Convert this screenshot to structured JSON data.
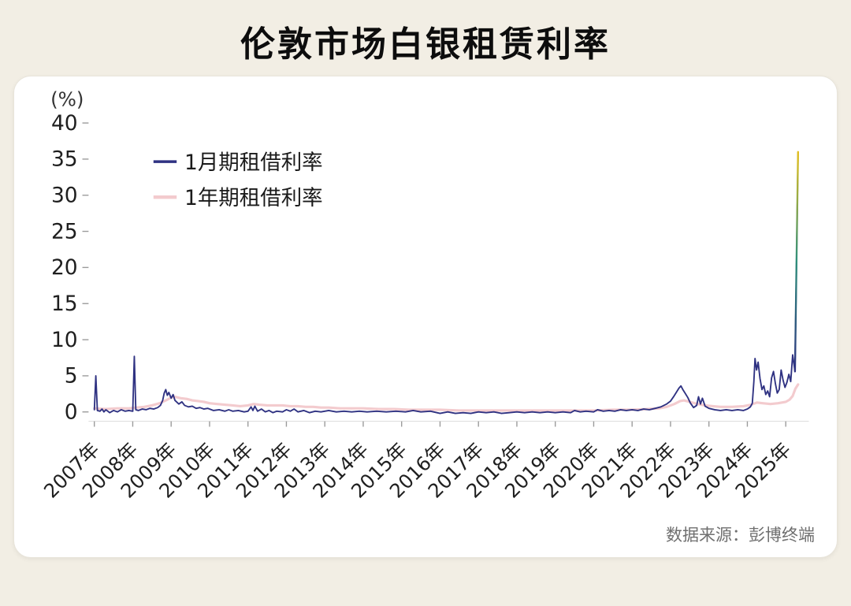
{
  "page": {
    "title": "伦敦市场白银租赁利率",
    "source": "数据来源：彭博终端"
  },
  "chart_data": {
    "type": "line",
    "title": "伦敦市场白银租赁利率",
    "unit_label": "(%)",
    "ylim": [
      0,
      40
    ],
    "y_ticks": [
      0,
      5,
      10,
      15,
      20,
      25,
      30,
      35,
      40
    ],
    "x_tick_years": [
      2007,
      2008,
      2009,
      2010,
      2011,
      2012,
      2013,
      2014,
      2015,
      2016,
      2017,
      2018,
      2019,
      2020,
      2021,
      2022,
      2023,
      2024,
      2025
    ],
    "x_tick_labels": [
      "2007年",
      "2008年",
      "2009年",
      "2010年",
      "2011年",
      "2012年",
      "2013年",
      "2014年",
      "2015年",
      "2016年",
      "2017年",
      "2018年",
      "2019年",
      "2020年",
      "2021年",
      "2022年",
      "2023年",
      "2024年",
      "2025年"
    ],
    "grid": false,
    "legend_position": "top-left",
    "legend": [
      {
        "label": "1月期租借利率",
        "color": "#2F3282"
      },
      {
        "label": "1年期租借利率",
        "color": "#F3CBCE"
      }
    ],
    "spike_gradient": [
      "#2F3282",
      "#2E8F7B",
      "#E5C01D"
    ],
    "source": "数据来源：彭博终端",
    "series": [
      {
        "name": "1月期租借利率",
        "color": "#2F3282",
        "points": [
          [
            2007.0,
            0.3
          ],
          [
            2007.04,
            5.0
          ],
          [
            2007.08,
            0.2
          ],
          [
            2007.15,
            0.1
          ],
          [
            2007.2,
            0.4
          ],
          [
            2007.25,
            0.0
          ],
          [
            2007.3,
            0.3
          ],
          [
            2007.4,
            -0.1
          ],
          [
            2007.5,
            0.2
          ],
          [
            2007.6,
            0.0
          ],
          [
            2007.7,
            0.3
          ],
          [
            2007.8,
            0.1
          ],
          [
            2007.9,
            0.2
          ],
          [
            2008.0,
            0.1
          ],
          [
            2008.04,
            7.7
          ],
          [
            2008.08,
            0.3
          ],
          [
            2008.15,
            0.2
          ],
          [
            2008.25,
            0.4
          ],
          [
            2008.35,
            0.3
          ],
          [
            2008.45,
            0.5
          ],
          [
            2008.55,
            0.4
          ],
          [
            2008.65,
            0.6
          ],
          [
            2008.72,
            0.9
          ],
          [
            2008.78,
            1.6
          ],
          [
            2008.82,
            2.6
          ],
          [
            2008.86,
            3.1
          ],
          [
            2008.9,
            2.3
          ],
          [
            2008.94,
            2.7
          ],
          [
            2009.0,
            1.9
          ],
          [
            2009.05,
            2.4
          ],
          [
            2009.1,
            1.6
          ],
          [
            2009.2,
            1.1
          ],
          [
            2009.28,
            1.4
          ],
          [
            2009.35,
            0.9
          ],
          [
            2009.45,
            0.7
          ],
          [
            2009.55,
            0.8
          ],
          [
            2009.65,
            0.5
          ],
          [
            2009.75,
            0.6
          ],
          [
            2009.85,
            0.4
          ],
          [
            2009.95,
            0.5
          ],
          [
            2010.1,
            0.2
          ],
          [
            2010.25,
            0.3
          ],
          [
            2010.4,
            0.1
          ],
          [
            2010.5,
            0.3
          ],
          [
            2010.6,
            0.1
          ],
          [
            2010.75,
            0.2
          ],
          [
            2010.9,
            0.0
          ],
          [
            2011.0,
            0.1
          ],
          [
            2011.08,
            0.7
          ],
          [
            2011.13,
            0.2
          ],
          [
            2011.18,
            0.8
          ],
          [
            2011.25,
            0.1
          ],
          [
            2011.35,
            0.4
          ],
          [
            2011.45,
            0.0
          ],
          [
            2011.55,
            0.2
          ],
          [
            2011.65,
            -0.1
          ],
          [
            2011.75,
            0.1
          ],
          [
            2011.9,
            0.0
          ],
          [
            2012.0,
            0.3
          ],
          [
            2012.1,
            0.1
          ],
          [
            2012.2,
            0.4
          ],
          [
            2012.3,
            0.0
          ],
          [
            2012.45,
            0.2
          ],
          [
            2012.6,
            -0.1
          ],
          [
            2012.75,
            0.1
          ],
          [
            2012.9,
            0.0
          ],
          [
            2013.1,
            0.2
          ],
          [
            2013.3,
            0.0
          ],
          [
            2013.5,
            0.1
          ],
          [
            2013.7,
            0.0
          ],
          [
            2013.9,
            0.1
          ],
          [
            2014.1,
            0.0
          ],
          [
            2014.35,
            0.1
          ],
          [
            2014.6,
            0.0
          ],
          [
            2014.85,
            0.1
          ],
          [
            2015.1,
            0.0
          ],
          [
            2015.3,
            0.2
          ],
          [
            2015.5,
            0.0
          ],
          [
            2015.75,
            0.1
          ],
          [
            2016.0,
            -0.2
          ],
          [
            2016.2,
            0.0
          ],
          [
            2016.4,
            -0.2
          ],
          [
            2016.6,
            -0.1
          ],
          [
            2016.8,
            -0.2
          ],
          [
            2017.0,
            0.0
          ],
          [
            2017.2,
            -0.1
          ],
          [
            2017.4,
            0.0
          ],
          [
            2017.6,
            -0.2
          ],
          [
            2017.8,
            -0.1
          ],
          [
            2018.0,
            0.0
          ],
          [
            2018.2,
            -0.1
          ],
          [
            2018.4,
            0.0
          ],
          [
            2018.6,
            -0.1
          ],
          [
            2018.8,
            0.0
          ],
          [
            2019.0,
            -0.1
          ],
          [
            2019.2,
            0.0
          ],
          [
            2019.4,
            -0.1
          ],
          [
            2019.5,
            0.2
          ],
          [
            2019.65,
            0.0
          ],
          [
            2019.8,
            0.1
          ],
          [
            2020.0,
            0.0
          ],
          [
            2020.1,
            0.3
          ],
          [
            2020.25,
            0.1
          ],
          [
            2020.4,
            0.2
          ],
          [
            2020.55,
            0.1
          ],
          [
            2020.7,
            0.3
          ],
          [
            2020.85,
            0.2
          ],
          [
            2021.0,
            0.3
          ],
          [
            2021.15,
            0.2
          ],
          [
            2021.3,
            0.4
          ],
          [
            2021.45,
            0.3
          ],
          [
            2021.6,
            0.5
          ],
          [
            2021.75,
            0.7
          ],
          [
            2021.9,
            1.1
          ],
          [
            2022.0,
            1.5
          ],
          [
            2022.08,
            2.1
          ],
          [
            2022.15,
            2.7
          ],
          [
            2022.22,
            3.3
          ],
          [
            2022.27,
            3.6
          ],
          [
            2022.32,
            3.1
          ],
          [
            2022.38,
            2.6
          ],
          [
            2022.45,
            2.0
          ],
          [
            2022.52,
            1.2
          ],
          [
            2022.6,
            0.6
          ],
          [
            2022.68,
            0.9
          ],
          [
            2022.73,
            2.1
          ],
          [
            2022.78,
            1.1
          ],
          [
            2022.83,
            1.9
          ],
          [
            2022.9,
            0.8
          ],
          [
            2023.0,
            0.5
          ],
          [
            2023.15,
            0.3
          ],
          [
            2023.3,
            0.2
          ],
          [
            2023.45,
            0.3
          ],
          [
            2023.6,
            0.2
          ],
          [
            2023.75,
            0.3
          ],
          [
            2023.9,
            0.2
          ],
          [
            2024.0,
            0.4
          ],
          [
            2024.08,
            0.7
          ],
          [
            2024.13,
            1.2
          ],
          [
            2024.17,
            4.2
          ],
          [
            2024.2,
            7.4
          ],
          [
            2024.24,
            5.8
          ],
          [
            2024.28,
            6.9
          ],
          [
            2024.33,
            4.6
          ],
          [
            2024.38,
            3.1
          ],
          [
            2024.43,
            3.6
          ],
          [
            2024.48,
            2.4
          ],
          [
            2024.53,
            2.9
          ],
          [
            2024.58,
            2.1
          ],
          [
            2024.63,
            4.7
          ],
          [
            2024.68,
            5.6
          ],
          [
            2024.73,
            3.9
          ],
          [
            2024.78,
            2.6
          ],
          [
            2024.83,
            3.1
          ],
          [
            2024.88,
            5.8
          ],
          [
            2024.93,
            4.4
          ],
          [
            2024.98,
            3.4
          ],
          [
            2025.03,
            4.1
          ],
          [
            2025.08,
            5.2
          ],
          [
            2025.13,
            4.2
          ],
          [
            2025.18,
            7.9
          ],
          [
            2025.24,
            5.6
          ],
          [
            2025.32,
            36.0
          ]
        ]
      },
      {
        "name": "1年期租借利率",
        "color": "#F3CBCE",
        "points": [
          [
            2007.0,
            0.5
          ],
          [
            2007.3,
            0.4
          ],
          [
            2007.6,
            0.5
          ],
          [
            2007.9,
            0.5
          ],
          [
            2008.1,
            0.6
          ],
          [
            2008.3,
            0.7
          ],
          [
            2008.5,
            0.9
          ],
          [
            2008.7,
            1.2
          ],
          [
            2008.9,
            1.7
          ],
          [
            2009.0,
            2.0
          ],
          [
            2009.1,
            2.1
          ],
          [
            2009.25,
            1.9
          ],
          [
            2009.4,
            1.8
          ],
          [
            2009.55,
            1.6
          ],
          [
            2009.7,
            1.5
          ],
          [
            2009.85,
            1.4
          ],
          [
            2010.0,
            1.2
          ],
          [
            2010.2,
            1.1
          ],
          [
            2010.4,
            1.0
          ],
          [
            2010.6,
            0.9
          ],
          [
            2010.8,
            0.8
          ],
          [
            2011.0,
            0.9
          ],
          [
            2011.15,
            1.1
          ],
          [
            2011.3,
            1.0
          ],
          [
            2011.5,
            0.9
          ],
          [
            2011.7,
            0.9
          ],
          [
            2011.9,
            0.9
          ],
          [
            2012.1,
            0.8
          ],
          [
            2012.3,
            0.8
          ],
          [
            2012.5,
            0.7
          ],
          [
            2012.7,
            0.7
          ],
          [
            2012.9,
            0.6
          ],
          [
            2013.1,
            0.6
          ],
          [
            2013.4,
            0.5
          ],
          [
            2013.7,
            0.5
          ],
          [
            2014.0,
            0.5
          ],
          [
            2014.4,
            0.4
          ],
          [
            2014.8,
            0.4
          ],
          [
            2015.2,
            0.3
          ],
          [
            2015.6,
            0.3
          ],
          [
            2016.0,
            0.3
          ],
          [
            2016.5,
            0.2
          ],
          [
            2017.0,
            0.2
          ],
          [
            2017.5,
            0.2
          ],
          [
            2018.0,
            0.2
          ],
          [
            2018.5,
            0.2
          ],
          [
            2019.0,
            0.2
          ],
          [
            2019.5,
            0.2
          ],
          [
            2020.0,
            0.2
          ],
          [
            2020.5,
            0.3
          ],
          [
            2021.0,
            0.3
          ],
          [
            2021.4,
            0.4
          ],
          [
            2021.7,
            0.5
          ],
          [
            2021.9,
            0.7
          ],
          [
            2022.1,
            1.1
          ],
          [
            2022.25,
            1.5
          ],
          [
            2022.35,
            1.6
          ],
          [
            2022.5,
            1.4
          ],
          [
            2022.7,
            1.1
          ],
          [
            2022.9,
            0.9
          ],
          [
            2023.1,
            0.8
          ],
          [
            2023.3,
            0.7
          ],
          [
            2023.6,
            0.7
          ],
          [
            2023.9,
            0.8
          ],
          [
            2024.1,
            1.0
          ],
          [
            2024.25,
            1.3
          ],
          [
            2024.4,
            1.2
          ],
          [
            2024.6,
            1.1
          ],
          [
            2024.8,
            1.2
          ],
          [
            2025.0,
            1.4
          ],
          [
            2025.1,
            1.7
          ],
          [
            2025.18,
            2.2
          ],
          [
            2025.25,
            3.2
          ],
          [
            2025.32,
            3.8
          ]
        ]
      }
    ]
  }
}
